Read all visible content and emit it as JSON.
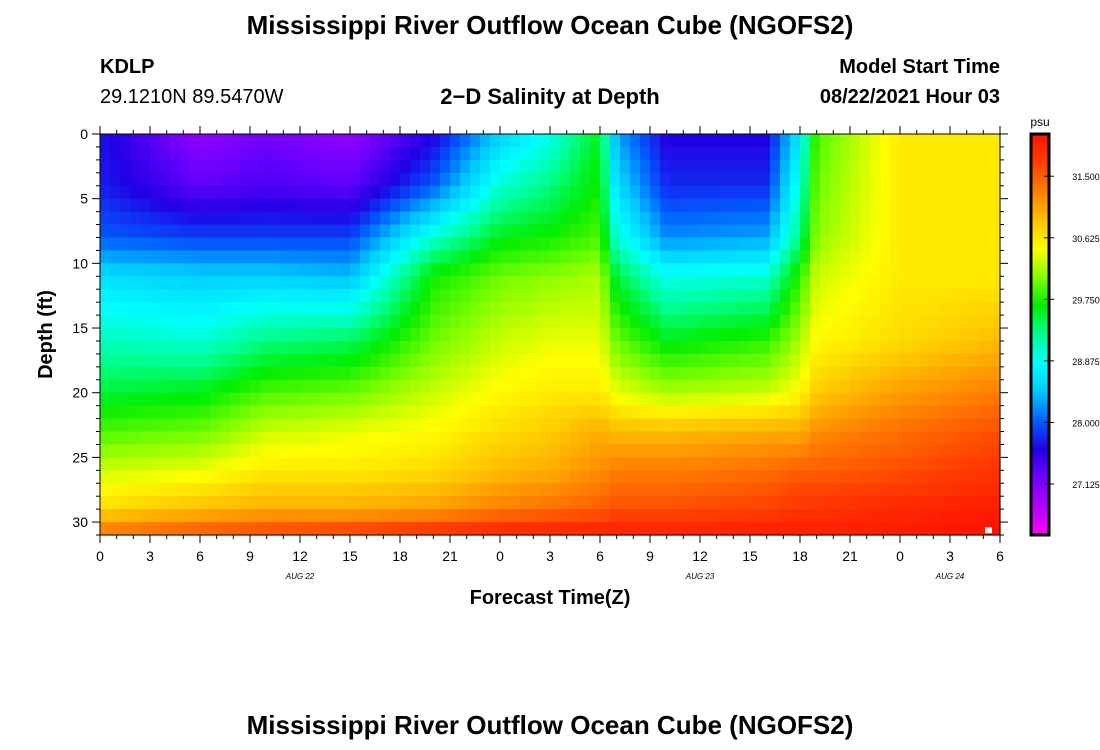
{
  "page": {
    "title": "Mississippi River Outflow Ocean Cube (NGOFS2)",
    "footer_title": "Mississippi River Outflow Ocean Cube (NGOFS2)",
    "station_id": "KDLP",
    "station_coords": "29.1210N  89.5470W",
    "plot_title": "2−D Salinity at Depth",
    "model_start_label": "Model Start Time",
    "model_start_value": "08/22/2021 Hour 03"
  },
  "chart_data": {
    "type": "heatmap",
    "title": "2−D Salinity at Depth",
    "xlabel": "Forecast Time(Z)",
    "ylabel": "Depth (ft)",
    "x_ticks": [
      "0",
      "3",
      "6",
      "9",
      "12",
      "15",
      "18",
      "21",
      "0",
      "3",
      "6",
      "9",
      "12",
      "15",
      "18",
      "21",
      "0",
      "3",
      "6"
    ],
    "date_labels": [
      {
        "label": "AUG  22",
        "forecast_hour": 12
      },
      {
        "label": "AUG  23",
        "forecast_hour": 36
      },
      {
        "label": "AUG  24",
        "forecast_hour": 51
      }
    ],
    "xlim_hours": [
      0,
      54
    ],
    "y_ticks": [
      "0",
      "5",
      "10",
      "15",
      "20",
      "25",
      "30"
    ],
    "ylim": [
      31,
      0
    ],
    "colorbar": {
      "unit": "psu",
      "ticks": [
        "31.500",
        "30.625",
        "29.750",
        "28.875",
        "28.000",
        "27.125"
      ],
      "range": [
        26.4,
        32.1
      ],
      "colors": [
        "#ff00ff",
        "#b000ff",
        "#7000ff",
        "#2000e6",
        "#0060ff",
        "#00c8ff",
        "#00ffff",
        "#00ff90",
        "#00ee00",
        "#80ff00",
        "#ffff00",
        "#ffc000",
        "#ff8000",
        "#ff4000",
        "#ff1000"
      ]
    },
    "grid": false,
    "depth_profiles": [
      {
        "hour": 0,
        "levels": [
          [
            0,
            27.7
          ],
          [
            4,
            27.75
          ],
          [
            8,
            28.0
          ],
          [
            11,
            28.6
          ],
          [
            16,
            29.1
          ],
          [
            20,
            29.5
          ],
          [
            23,
            29.9
          ],
          [
            26,
            30.3
          ],
          [
            29,
            30.7
          ],
          [
            31,
            31.4
          ]
        ]
      },
      {
        "hour": 6,
        "levels": [
          [
            0,
            27.0
          ],
          [
            4,
            27.3
          ],
          [
            8,
            27.9
          ],
          [
            11,
            28.5
          ],
          [
            16,
            29.0
          ],
          [
            20,
            29.6
          ],
          [
            23,
            30.0
          ],
          [
            26,
            30.4
          ],
          [
            29,
            30.9
          ],
          [
            31,
            31.6
          ]
        ]
      },
      {
        "hour": 10,
        "levels": [
          [
            0,
            27.2
          ],
          [
            4,
            27.4
          ],
          [
            8,
            27.9
          ],
          [
            11,
            28.5
          ],
          [
            16,
            29.3
          ],
          [
            20,
            29.9
          ],
          [
            23,
            30.3
          ],
          [
            26,
            30.6
          ],
          [
            29,
            31.0
          ],
          [
            31,
            31.7
          ]
        ]
      },
      {
        "hour": 15,
        "levels": [
          [
            0,
            27.0
          ],
          [
            4,
            27.3
          ],
          [
            8,
            27.9
          ],
          [
            11,
            28.4
          ],
          [
            16,
            29.4
          ],
          [
            20,
            30.0
          ],
          [
            23,
            30.4
          ],
          [
            26,
            30.6
          ],
          [
            29,
            31.0
          ],
          [
            31,
            31.8
          ]
        ]
      },
      {
        "hour": 20,
        "levels": [
          [
            0,
            27.6
          ],
          [
            4,
            28.0
          ],
          [
            8,
            29.0
          ],
          [
            11,
            29.7
          ],
          [
            16,
            30.0
          ],
          [
            20,
            30.3
          ],
          [
            23,
            30.5
          ],
          [
            26,
            30.7
          ],
          [
            29,
            31.1
          ],
          [
            31,
            31.9
          ]
        ]
      },
      {
        "hour": 24,
        "levels": [
          [
            0,
            28.5
          ],
          [
            4,
            29.0
          ],
          [
            8,
            29.6
          ],
          [
            11,
            30.0
          ],
          [
            16,
            30.3
          ],
          [
            20,
            30.5
          ],
          [
            23,
            30.7
          ],
          [
            26,
            30.9
          ],
          [
            29,
            31.3
          ],
          [
            31,
            32.0
          ]
        ]
      },
      {
        "hour": 27,
        "levels": [
          [
            0,
            28.9
          ],
          [
            4,
            29.3
          ],
          [
            8,
            29.7
          ],
          [
            11,
            30.1
          ],
          [
            16,
            30.4
          ],
          [
            20,
            30.6
          ],
          [
            23,
            30.8
          ],
          [
            26,
            31.0
          ],
          [
            29,
            31.4
          ],
          [
            31,
            32.0
          ]
        ]
      },
      {
        "hour": 30,
        "levels": [
          [
            0,
            29.6
          ],
          [
            4,
            29.7
          ],
          [
            8,
            29.9
          ],
          [
            11,
            30.2
          ],
          [
            16,
            30.4
          ],
          [
            20,
            30.6
          ],
          [
            23,
            31.0
          ],
          [
            26,
            31.2
          ],
          [
            29,
            31.5
          ],
          [
            31,
            32.0
          ]
        ]
      },
      {
        "hour": 31,
        "levels": [
          [
            0,
            28.3
          ],
          [
            4,
            28.6
          ],
          [
            8,
            29.0
          ],
          [
            11,
            29.5
          ],
          [
            16,
            30.0
          ],
          [
            20,
            30.4
          ],
          [
            23,
            30.9
          ],
          [
            26,
            31.3
          ],
          [
            29,
            31.6
          ],
          [
            31,
            32.0
          ]
        ]
      },
      {
        "hour": 34,
        "levels": [
          [
            0,
            27.6
          ],
          [
            4,
            27.8
          ],
          [
            8,
            28.2
          ],
          [
            11,
            28.9
          ],
          [
            16,
            29.6
          ],
          [
            20,
            30.2
          ],
          [
            23,
            30.9
          ],
          [
            26,
            31.3
          ],
          [
            29,
            31.6
          ],
          [
            31,
            32.0
          ]
        ]
      },
      {
        "hour": 40,
        "levels": [
          [
            0,
            27.6
          ],
          [
            4,
            27.8
          ],
          [
            8,
            28.3
          ],
          [
            11,
            29.0
          ],
          [
            16,
            29.8
          ],
          [
            20,
            30.3
          ],
          [
            23,
            31.0
          ],
          [
            26,
            31.4
          ],
          [
            29,
            31.7
          ],
          [
            31,
            32.0
          ]
        ]
      },
      {
        "hour": 42,
        "levels": [
          [
            0,
            28.7
          ],
          [
            4,
            29.0
          ],
          [
            8,
            29.3
          ],
          [
            11,
            29.8
          ],
          [
            16,
            30.2
          ],
          [
            20,
            30.5
          ],
          [
            23,
            31.0
          ],
          [
            26,
            31.5
          ],
          [
            29,
            31.8
          ],
          [
            31,
            32.0
          ]
        ]
      },
      {
        "hour": 43,
        "levels": [
          [
            0,
            29.9
          ],
          [
            4,
            30.0
          ],
          [
            8,
            30.1
          ],
          [
            11,
            30.3
          ],
          [
            16,
            30.5
          ],
          [
            20,
            30.8
          ],
          [
            23,
            31.2
          ],
          [
            26,
            31.5
          ],
          [
            29,
            31.8
          ],
          [
            31,
            32.0
          ]
        ]
      },
      {
        "hour": 48,
        "levels": [
          [
            0,
            30.6
          ],
          [
            4,
            30.6
          ],
          [
            8,
            30.6
          ],
          [
            11,
            30.6
          ],
          [
            16,
            30.7
          ],
          [
            20,
            31.1
          ],
          [
            23,
            31.4
          ],
          [
            26,
            31.6
          ],
          [
            29,
            31.9
          ],
          [
            31,
            32.0
          ]
        ]
      },
      {
        "hour": 54,
        "levels": [
          [
            0,
            30.6
          ],
          [
            4,
            30.6
          ],
          [
            8,
            30.6
          ],
          [
            11,
            30.6
          ],
          [
            16,
            30.9
          ],
          [
            20,
            31.3
          ],
          [
            23,
            31.6
          ],
          [
            26,
            31.8
          ],
          [
            29,
            32.0
          ],
          [
            31,
            32.1
          ]
        ]
      }
    ]
  }
}
